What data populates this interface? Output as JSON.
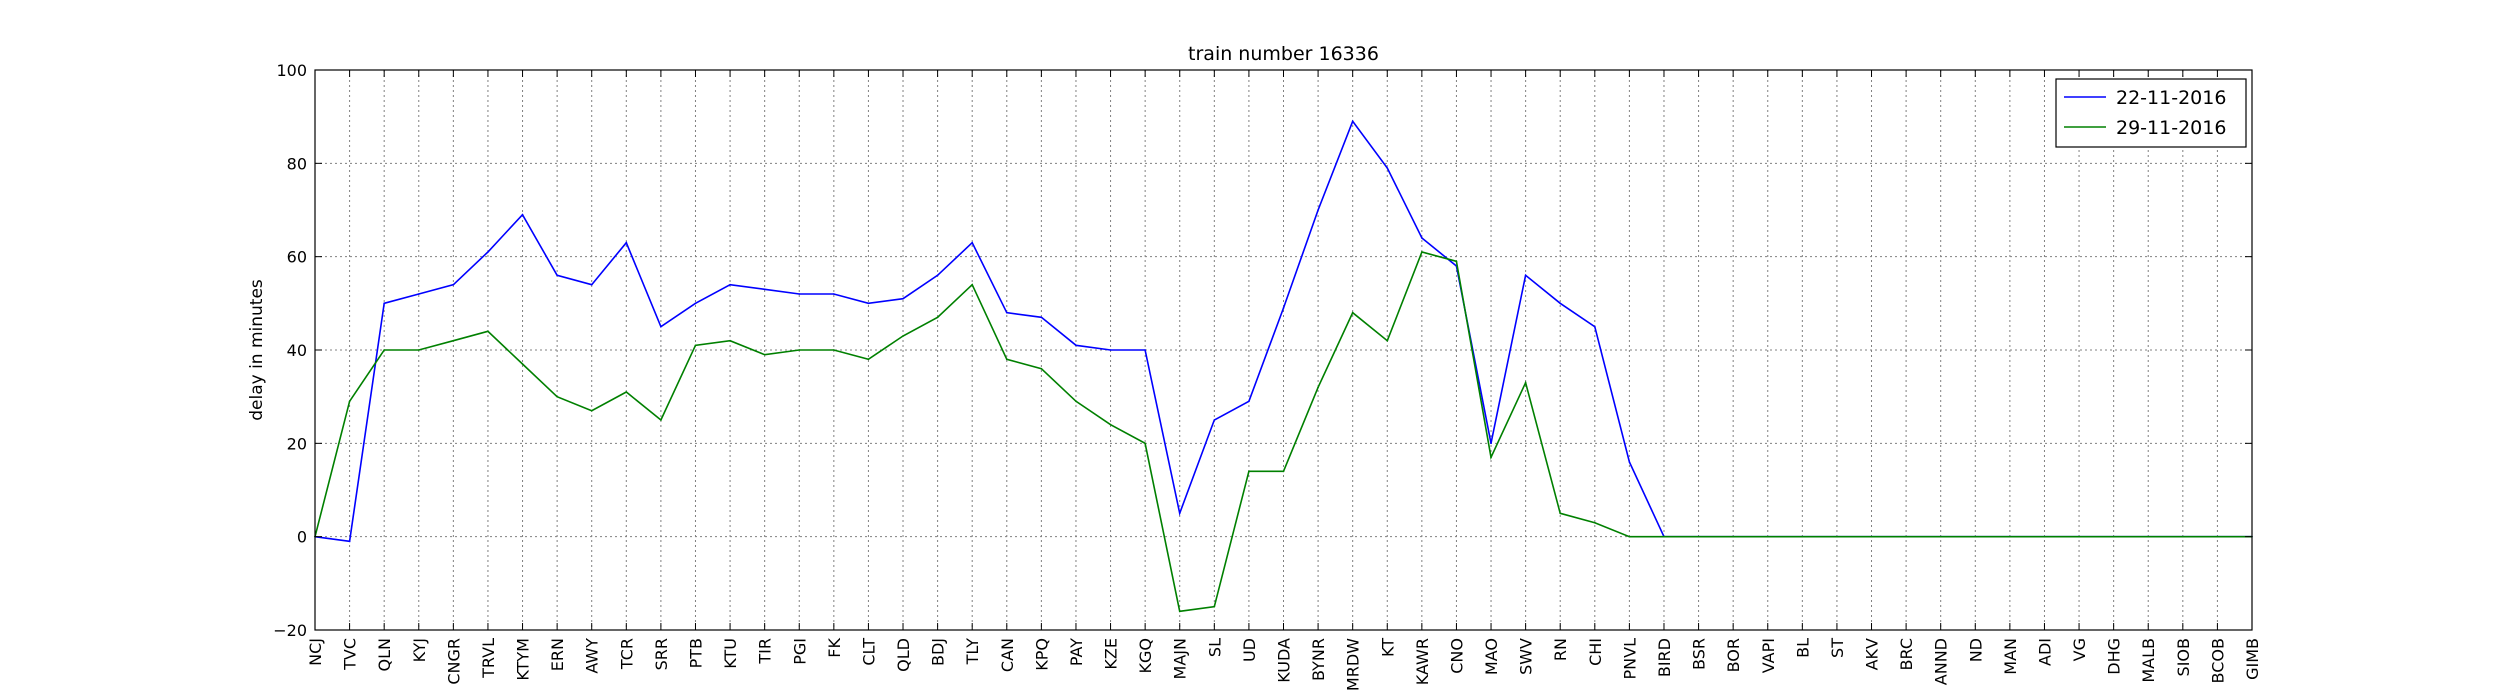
{
  "chart_data": {
    "type": "line",
    "title": "train number 16336",
    "ylabel": "delay in minutes",
    "ylim": [
      -20,
      100
    ],
    "yticks": [
      "100",
      "80",
      "60",
      "40",
      "20",
      "0",
      "−20"
    ],
    "grid": true,
    "legend_position": "top-right",
    "categories": [
      "NCJ",
      "TVC",
      "QLN",
      "KYJ",
      "CNGR",
      "TRVL",
      "KTYM",
      "ERN",
      "AWY",
      "TCR",
      "SRR",
      "PTB",
      "KTU",
      "TIR",
      "PGI",
      "FK",
      "CLT",
      "QLD",
      "BDJ",
      "TLY",
      "CAN",
      "KPQ",
      "PAY",
      "KZE",
      "KGQ",
      "MAJN",
      "SL",
      "UD",
      "KUDA",
      "BYNR",
      "MRDW",
      "KT",
      "KAWR",
      "CNO",
      "MAO",
      "SWV",
      "RN",
      "CHI",
      "PNVL",
      "BIRD",
      "BSR",
      "BOR",
      "VAPI",
      "BL",
      "ST",
      "AKV",
      "BRC",
      "ANND",
      "ND",
      "MAN",
      "ADI",
      "VG",
      "DHG",
      "MALB",
      "SIOB",
      "BCOB",
      "GIMB"
    ],
    "series": [
      {
        "name": "22-11-2016",
        "color": "#0000ff",
        "values": [
          0,
          -1,
          50,
          52,
          54,
          61,
          69,
          56,
          54,
          63,
          45,
          50,
          54,
          53,
          52,
          52,
          50,
          51,
          56,
          63,
          48,
          47,
          41,
          40,
          40,
          5,
          25,
          29,
          49,
          70,
          89,
          79,
          64,
          58,
          20,
          56,
          50,
          45,
          16,
          0,
          0,
          0,
          0,
          0,
          0,
          0,
          0,
          0,
          0,
          0,
          0,
          0,
          0,
          0,
          0,
          0,
          0
        ]
      },
      {
        "name": "29-11-2016",
        "color": "#008000",
        "values": [
          0,
          29,
          40,
          40,
          42,
          44,
          37,
          30,
          27,
          31,
          25,
          41,
          42,
          39,
          40,
          40,
          38,
          43,
          47,
          54,
          38,
          36,
          29,
          24,
          20,
          -16,
          -15,
          14,
          14,
          32,
          48,
          42,
          61,
          59,
          17,
          33,
          5,
          3,
          0,
          0,
          0,
          0,
          0,
          0,
          0,
          0,
          0,
          0,
          0,
          0,
          0,
          0,
          0,
          0,
          0,
          0,
          0
        ]
      }
    ]
  }
}
